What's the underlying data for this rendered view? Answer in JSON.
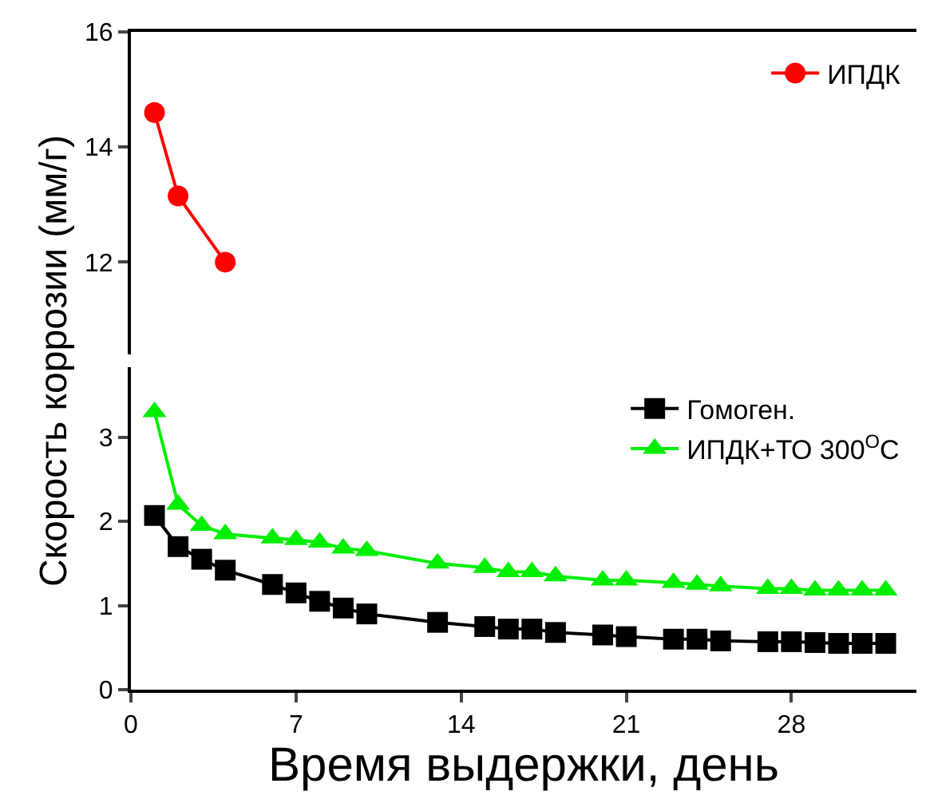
{
  "chart_data": [
    {
      "type": "line",
      "ylabel": "Скорость коррозии (мм/г)",
      "x": [
        1,
        2,
        4
      ],
      "xlim": [
        0,
        33.3
      ],
      "ylim": [
        10.4,
        16
      ],
      "yticks": [
        12,
        14,
        16
      ],
      "tick_labels": "y",
      "legend": "top right",
      "series": [
        {
          "name": "ИПДК",
          "color": "#ff0000",
          "marker": "circle",
          "line_style": "solid",
          "values": [
            14.6,
            13.15,
            12.0
          ]
        }
      ]
    },
    {
      "type": "line",
      "xlabel": "Время выдержки, день",
      "x": [
        1,
        2,
        3,
        4,
        6,
        7,
        8,
        9,
        10,
        13,
        15,
        16,
        17,
        18,
        20,
        21,
        23,
        24,
        25,
        27,
        28,
        29,
        30,
        31,
        32
      ],
      "xlim": [
        0,
        33.3
      ],
      "xticks": [
        0,
        7,
        14,
        21,
        28
      ],
      "ylim": [
        0,
        3.83
      ],
      "yticks": [
        0,
        1,
        2,
        3
      ],
      "legend": "top right",
      "series": [
        {
          "name": "Гомоген.",
          "color": "#000000",
          "marker": "square",
          "line_style": "solid",
          "values": [
            2.07,
            1.7,
            1.55,
            1.42,
            1.25,
            1.15,
            1.05,
            0.97,
            0.9,
            0.8,
            0.75,
            0.72,
            0.72,
            0.68,
            0.65,
            0.63,
            0.6,
            0.6,
            0.58,
            0.57,
            0.57,
            0.56,
            0.55,
            0.55,
            0.55
          ]
        },
        {
          "name": "ИПДК+ТО 300$^{O}$C",
          "color": "#00ee00",
          "marker": "triangle",
          "line_style": "solid",
          "values": [
            3.3,
            2.2,
            1.95,
            1.85,
            1.8,
            1.78,
            1.75,
            1.68,
            1.65,
            1.5,
            1.45,
            1.4,
            1.4,
            1.35,
            1.3,
            1.3,
            1.27,
            1.25,
            1.23,
            1.2,
            1.2,
            1.18,
            1.18,
            1.18,
            1.18
          ]
        }
      ]
    }
  ]
}
